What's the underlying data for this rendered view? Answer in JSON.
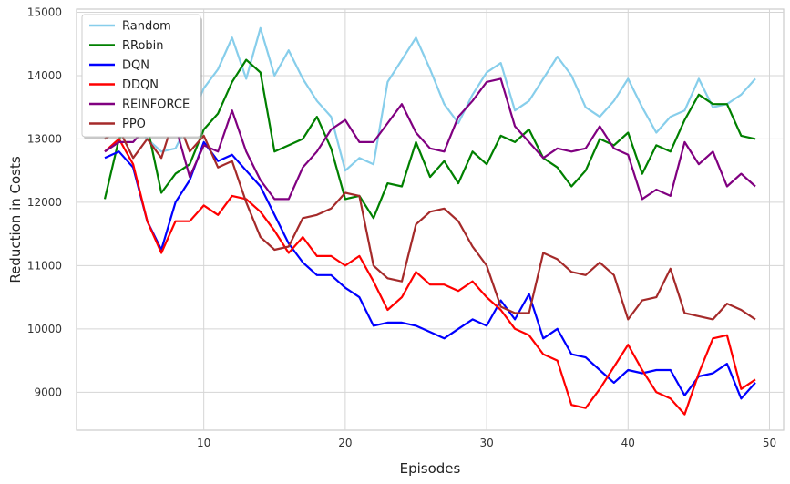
{
  "chart_data": {
    "type": "line",
    "title": "",
    "xlabel": "Episodes",
    "ylabel": "Reduction in Costs",
    "xlim": [
      1,
      51
    ],
    "ylim": [
      8400,
      15050
    ],
    "xticks": [
      10,
      20,
      30,
      40,
      50
    ],
    "yticks": [
      9000,
      10000,
      11000,
      12000,
      13000,
      14000,
      15000
    ],
    "grid": true,
    "legend_position": "top-left",
    "x": [
      3,
      4,
      5,
      6,
      7,
      8,
      9,
      10,
      11,
      12,
      13,
      14,
      15,
      16,
      17,
      18,
      19,
      20,
      21,
      22,
      23,
      24,
      25,
      26,
      27,
      28,
      29,
      30,
      31,
      32,
      33,
      34,
      35,
      36,
      37,
      38,
      39,
      40,
      41,
      42,
      43,
      44,
      45,
      46,
      47,
      48,
      49
    ],
    "series": [
      {
        "name": "Random",
        "color": "#87CEEB",
        "values": [
          12800,
          13000,
          13250,
          13000,
          12800,
          12850,
          13300,
          13800,
          14100,
          14600,
          13950,
          14750,
          14000,
          14400,
          13950,
          13600,
          13350,
          12500,
          12700,
          12600,
          13900,
          14250,
          14600,
          14100,
          13550,
          13250,
          13700,
          14050,
          14200,
          13450,
          13600,
          13950,
          14300,
          14000,
          13500,
          13350,
          13600,
          13950,
          13500,
          13100,
          13350,
          13450,
          13950,
          13500,
          13550,
          13700,
          13950
        ]
      },
      {
        "name": "RRobin",
        "color": "#008000",
        "values": [
          12050,
          13000,
          13300,
          13200,
          12150,
          12450,
          12600,
          13150,
          13400,
          13900,
          14250,
          14050,
          12800,
          12900,
          13000,
          13350,
          12850,
          12050,
          12100,
          11750,
          12300,
          12250,
          12950,
          12400,
          12650,
          12300,
          12800,
          12600,
          13050,
          12950,
          13150,
          12700,
          12550,
          12250,
          12500,
          13000,
          12900,
          13100,
          12450,
          12900,
          12800,
          13300,
          13700,
          13550,
          13550,
          13050,
          13000
        ]
      },
      {
        "name": "DQN",
        "color": "#0000FF",
        "values": [
          12700,
          12800,
          12550,
          11700,
          11250,
          12000,
          12350,
          12950,
          12650,
          12750,
          12500,
          12250,
          11800,
          11350,
          11050,
          10850,
          10850,
          10650,
          10500,
          10050,
          10100,
          10100,
          10050,
          9950,
          9850,
          10000,
          10150,
          10050,
          10450,
          10150,
          10550,
          9850,
          10000,
          9600,
          9550,
          9350,
          9150,
          9350,
          9300,
          9350,
          9350,
          8950,
          9250,
          9300,
          9450,
          8900,
          9150
        ]
      },
      {
        "name": "DDQN",
        "color": "#FF0000",
        "values": [
          12800,
          13000,
          12600,
          11700,
          11200,
          11700,
          11700,
          11950,
          11800,
          12100,
          12050,
          11850,
          11550,
          11200,
          11450,
          11150,
          11150,
          11000,
          11150,
          10750,
          10300,
          10500,
          10900,
          10700,
          10700,
          10600,
          10750,
          10500,
          10300,
          10000,
          9900,
          9600,
          9500,
          8800,
          8750,
          9050,
          9400,
          9750,
          9350,
          9000,
          8900,
          8650,
          9300,
          9850,
          9900,
          9050,
          9200
        ]
      },
      {
        "name": "REINFORCE",
        "color": "#800080",
        "values": [
          12800,
          12950,
          12950,
          13200,
          13150,
          13200,
          12400,
          12900,
          12800,
          13450,
          12800,
          12350,
          12050,
          12050,
          12550,
          12800,
          13150,
          13300,
          12950,
          12950,
          13250,
          13550,
          13100,
          12850,
          12800,
          13350,
          13600,
          13900,
          13950,
          13200,
          12950,
          12700,
          12850,
          12800,
          12850,
          13200,
          12850,
          12750,
          12050,
          12200,
          12100,
          12950,
          12600,
          12800,
          12250,
          12450,
          12250
        ]
      },
      {
        "name": "PPO",
        "color": "#A52A2A",
        "values": [
          13000,
          13150,
          12700,
          13000,
          12700,
          13400,
          12800,
          13050,
          12550,
          12650,
          12000,
          11450,
          11250,
          11300,
          11750,
          11800,
          11900,
          12150,
          12100,
          11000,
          10800,
          10750,
          11650,
          11850,
          11900,
          11700,
          11300,
          11000,
          10350,
          10250,
          10250,
          11200,
          11100,
          10900,
          10850,
          11050,
          10850,
          10150,
          10450,
          10500,
          10950,
          10250,
          10200,
          10150,
          10400,
          10300,
          10150
        ]
      }
    ]
  }
}
